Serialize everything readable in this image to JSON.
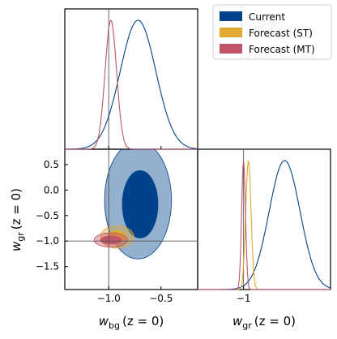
{
  "chart_data": {
    "type": "triangle-corner",
    "colors": {
      "current": "#00438a",
      "forecast_st": "#e0a92f",
      "forecast_mt": "#c25567",
      "refline": "#555555"
    },
    "legend": {
      "placement": "top-right",
      "entries": [
        {
          "label": "Current",
          "color": "#00438a"
        },
        {
          "label": "Forecast (ST)",
          "color": "#e0a92f"
        },
        {
          "label": "Forecast (MT)",
          "color": "#c25567"
        }
      ]
    },
    "params": {
      "wbg": {
        "label_main": "w",
        "label_sub": "bg",
        "label_tail": "(z = 0)",
        "range": [
          -1.42,
          -0.15
        ],
        "ticks": [
          -1.0,
          -0.5
        ],
        "tick_labels": [
          "−1.0",
          "−0.5"
        ],
        "reference": -1.0
      },
      "wgr": {
        "label_main": "w",
        "label_sub": "gr",
        "label_tail": "(z = 0)",
        "range": [
          -1.95,
          0.8
        ],
        "ticks": [
          0.5,
          0.0,
          -0.5,
          -1.0,
          -1.5
        ],
        "tick_labels": [
          "0.5",
          "0.0",
          "−0.5",
          "−1.0",
          "−1.5"
        ],
        "ticks_1d": [
          -1
        ],
        "tick_labels_1d": [
          "−1"
        ],
        "reference": -1.0
      }
    },
    "marginal_wbg": {
      "series": [
        {
          "name": "Current",
          "mean": -0.72,
          "sigma": 0.17,
          "peak": 1.0
        },
        {
          "name": "Forecast (MT)",
          "mean": -0.98,
          "sigma": 0.055,
          "peak": 1.0
        }
      ]
    },
    "marginal_wgr": {
      "series": [
        {
          "name": "Current",
          "mean": -0.15,
          "sigma": 0.32,
          "peak": 1.0
        },
        {
          "name": "Forecast (ST)",
          "mean": -0.9,
          "sigma": 0.055,
          "peak": 1.0
        },
        {
          "name": "Forecast (MT)",
          "mean": -1.0,
          "sigma": 0.04,
          "peak": 1.0
        }
      ]
    },
    "contours_2d": [
      {
        "name": "Current",
        "level": "95%",
        "center": [
          -0.72,
          -0.2
        ],
        "radii": [
          0.32,
          1.15
        ]
      },
      {
        "name": "Current",
        "level": "68%",
        "center": [
          -0.7,
          -0.28
        ],
        "radii": [
          0.17,
          0.66
        ]
      },
      {
        "name": "Forecast (ST)",
        "level": "95%",
        "center": [
          -0.92,
          -0.92
        ],
        "radii": [
          0.16,
          0.22
        ]
      },
      {
        "name": "Forecast (ST)",
        "level": "68%",
        "center": [
          -0.92,
          -0.92
        ],
        "radii": [
          0.09,
          0.12
        ]
      },
      {
        "name": "Forecast (MT)",
        "level": "95%",
        "center": [
          -0.98,
          -0.98
        ],
        "radii": [
          0.16,
          0.14
        ]
      },
      {
        "name": "Forecast (MT)",
        "level": "68%",
        "center": [
          -0.98,
          -0.98
        ],
        "radii": [
          0.1,
          0.08
        ]
      }
    ]
  }
}
